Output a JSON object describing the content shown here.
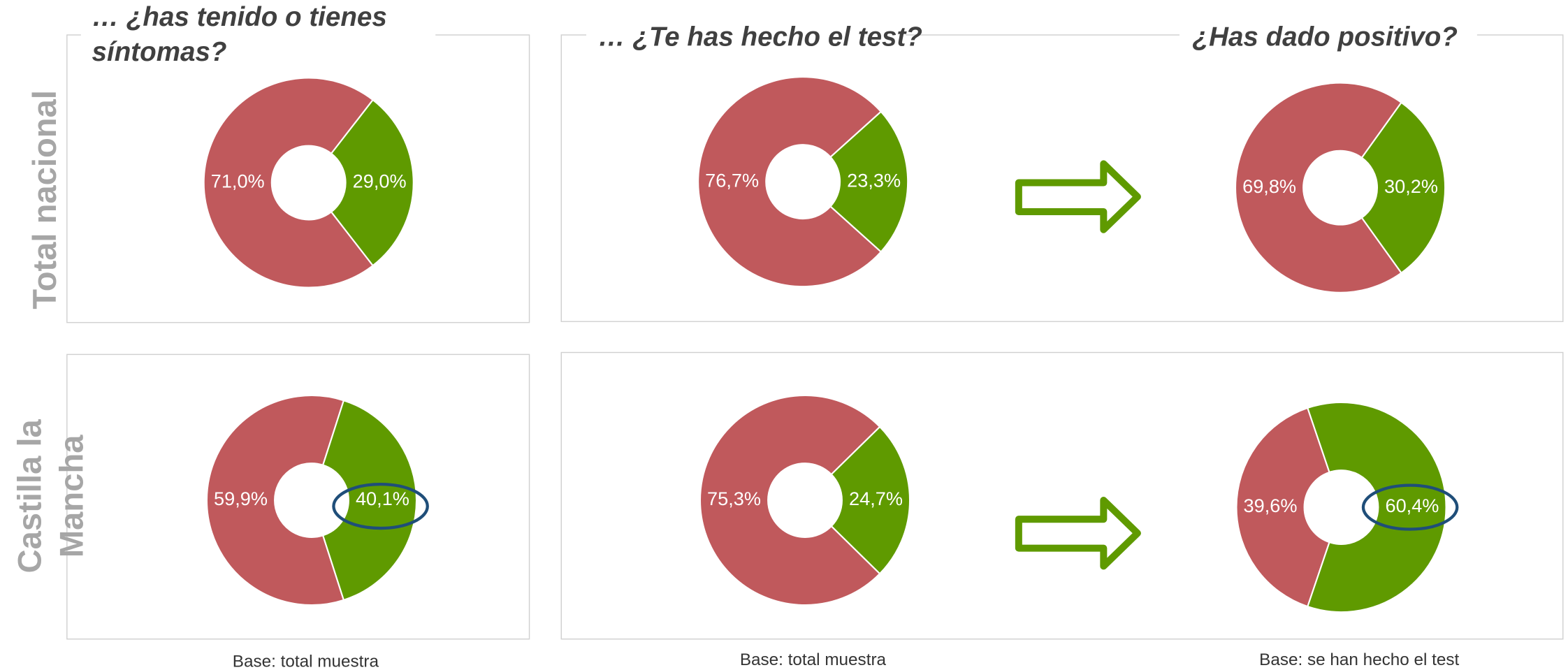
{
  "column_titles": [
    [
      "… ¿has tenido o tienes",
      "síntomas?"
    ],
    [
      "… ¿Te has hecho el test?"
    ],
    [
      "¿Has dado positivo?"
    ]
  ],
  "row_labels": [
    [
      "Total nacional"
    ],
    [
      "Castilla la",
      "Mancha"
    ]
  ],
  "notes": [
    "Base: total muestra",
    "Base: total muestra",
    "Base: se han hecho el test"
  ],
  "chart_data": [
    {
      "type": "donut",
      "values": [
        71.0,
        29.0
      ],
      "value_labels": [
        "71,0%",
        "29,0%"
      ],
      "colors": [
        "#c0595c",
        "#5f9a00"
      ]
    },
    {
      "type": "donut",
      "values": [
        76.7,
        23.3
      ],
      "value_labels": [
        "76,7%",
        "23,3%"
      ],
      "colors": [
        "#c0595c",
        "#5f9a00"
      ]
    },
    {
      "type": "donut",
      "values": [
        69.8,
        30.2
      ],
      "value_labels": [
        "69,8%",
        "30,2%"
      ],
      "colors": [
        "#c0595c",
        "#5f9a00"
      ]
    },
    {
      "type": "donut",
      "values": [
        59.9,
        40.1
      ],
      "value_labels": [
        "59,9%",
        "40,1%"
      ],
      "colors": [
        "#c0595c",
        "#5f9a00"
      ]
    },
    {
      "type": "donut",
      "values": [
        75.3,
        24.7
      ],
      "value_labels": [
        "75,3%",
        "24,7%"
      ],
      "colors": [
        "#c0595c",
        "#5f9a00"
      ]
    },
    {
      "type": "donut",
      "values": [
        39.6,
        60.4
      ],
      "value_labels": [
        "39,6%",
        "60,4%"
      ],
      "colors": [
        "#c0595c",
        "#5f9a00"
      ]
    }
  ]
}
